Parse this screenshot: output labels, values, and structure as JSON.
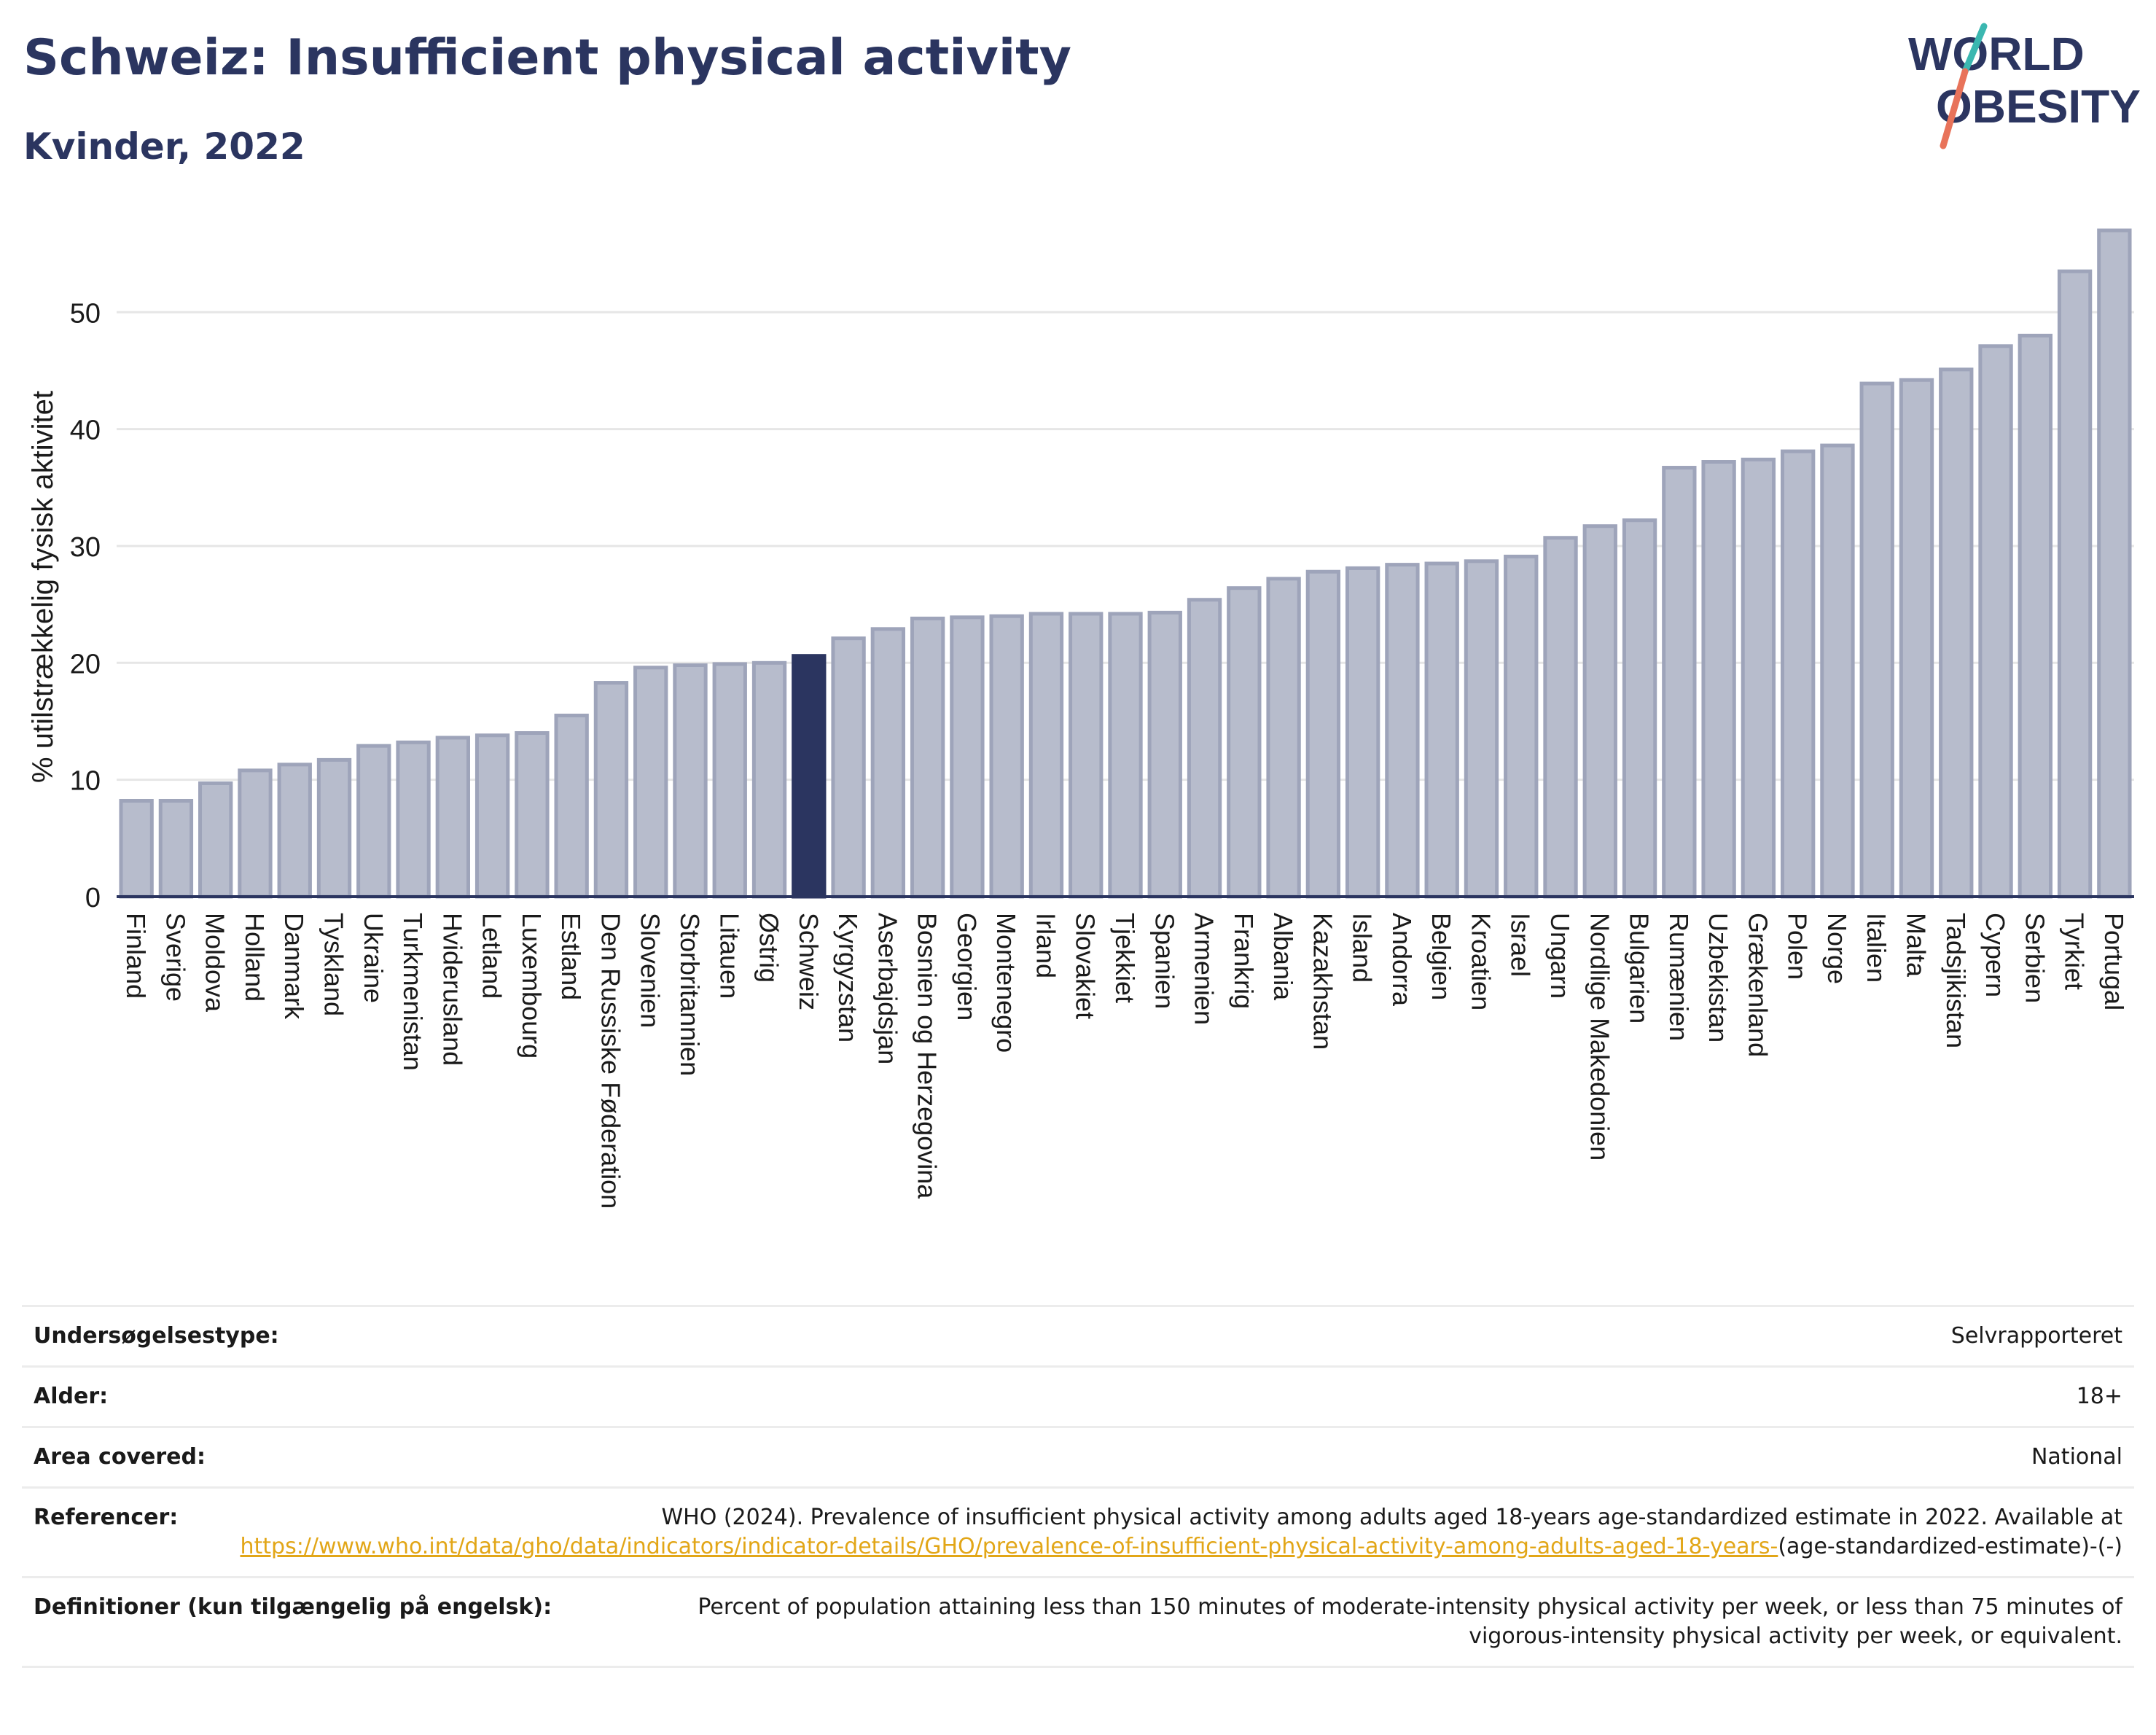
{
  "header": {
    "title": "Schweiz: Insufficient physical activity",
    "subtitle": "Kvinder, 2022"
  },
  "logo": {
    "line1": "WORLD",
    "line2": "OBESITY",
    "colors": {
      "text": "#2b3560",
      "slash_top": "#3bb7b0",
      "slash_bottom": "#e8735a"
    }
  },
  "colors": {
    "bar": "#b7bccc",
    "bar_stroke": "#9ea4ba",
    "highlight": "#2b3560",
    "axis": "#2b3560",
    "grid": "#e6e6e6",
    "title": "#2b3560",
    "link": "#e2a617"
  },
  "chart_data": {
    "type": "bar",
    "title": "Schweiz: Insufficient physical activity",
    "subtitle": "Kvinder, 2022",
    "xlabel": "",
    "ylabel": "% utilstrækkelig fysisk aktivitet",
    "ylim": [
      0,
      58
    ],
    "yticks": [
      0,
      10,
      20,
      30,
      40,
      50
    ],
    "grid": true,
    "highlight": "Schweiz",
    "categories": [
      "Finland",
      "Sverige",
      "Moldova",
      "Holland",
      "Danmark",
      "Tyskland",
      "Ukraine",
      "Turkmenistan",
      "Hviderusland",
      "Letland",
      "Luxembourg",
      "Estland",
      "Den Russiske Føderation",
      "Slovenien",
      "Storbritannien",
      "Litauen",
      "Østrig",
      "Schweiz",
      "Kyrgyzstan",
      "Aserbajdsjan",
      "Bosnien og Herzegovina",
      "Georgien",
      "Montenegro",
      "Irland",
      "Slovakiet",
      "Tjekkiet",
      "Spanien",
      "Armenien",
      "Frankrig",
      "Albania",
      "Kazakhstan",
      "Island",
      "Andorra",
      "Belgien",
      "Kroatien",
      "Israel",
      "Ungarn",
      "Nordlige Makedonien",
      "Bulgarien",
      "Rumænien",
      "Uzbekistan",
      "Grækenland",
      "Polen",
      "Norge",
      "Italien",
      "Malta",
      "Tadsjikistan",
      "Cypern",
      "Serbien",
      "Tyrkiet",
      "Portugal"
    ],
    "values": [
      8.2,
      8.2,
      9.7,
      10.8,
      11.3,
      11.7,
      12.9,
      13.2,
      13.6,
      13.8,
      14.0,
      15.5,
      18.3,
      19.6,
      19.8,
      19.9,
      20.0,
      20.6,
      22.1,
      22.9,
      23.8,
      23.9,
      24.0,
      24.2,
      24.2,
      24.2,
      24.3,
      25.4,
      26.4,
      27.2,
      27.8,
      28.1,
      28.4,
      28.5,
      28.7,
      29.1,
      30.7,
      31.7,
      32.2,
      36.7,
      37.2,
      37.4,
      38.1,
      38.6,
      43.9,
      44.2,
      45.1,
      47.1,
      48.0,
      53.5,
      57.0
    ]
  },
  "info": {
    "survey_type": {
      "label": "Undersøgelsestype:",
      "value": "Selvrapporteret"
    },
    "age": {
      "label": "Alder:",
      "value": "18+"
    },
    "area": {
      "label": "Area covered:",
      "value": "National"
    },
    "references": {
      "label": "Referencer:",
      "text_before": "WHO (2024). Prevalence of insufficient physical activity among adults aged 18-years age-standardized estimate in 2022. Available at ",
      "link_text": "https://www.who.int/data/gho/data/indicators/indicator-details/GHO/prevalence-of-insufficient-physical-activity-among-adults-aged-18-years-",
      "text_after": "(age-standardized-estimate)-(-)"
    },
    "definitions": {
      "label": "Definitioner (kun tilgængelig på engelsk):",
      "value": "Percent of population attaining less than 150 minutes of moderate-intensity physical activity per week, or less than 75 minutes of vigorous-intensity physical activity per week, or equivalent."
    }
  }
}
